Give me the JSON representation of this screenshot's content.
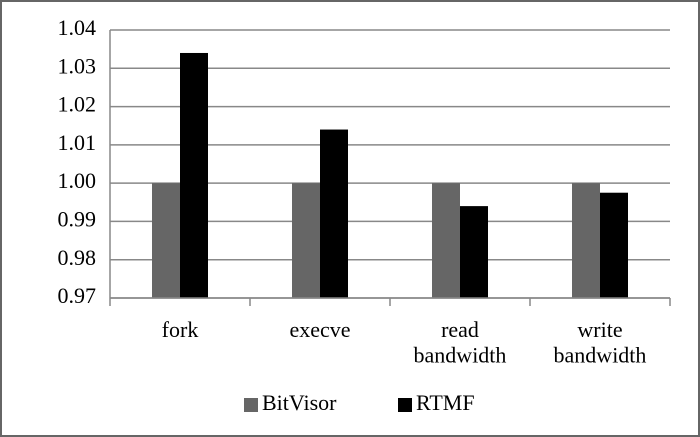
{
  "chart_data": {
    "type": "bar",
    "categories": [
      "fork",
      "execve",
      "read bandwidth",
      "write bandwidth"
    ],
    "series": [
      {
        "name": "BitVisor",
        "color": "#666666",
        "values": [
          1.0,
          1.0,
          1.0,
          1.0
        ]
      },
      {
        "name": "RTMF",
        "color": "#000000",
        "values": [
          1.034,
          1.014,
          0.994,
          0.9975
        ]
      }
    ],
    "ylim": [
      0.97,
      1.04
    ],
    "yticks": [
      0.97,
      0.98,
      0.99,
      {
        "value": 1,
        "label": "1.00"
      },
      1.01,
      1.02,
      1.03,
      1.04
    ],
    "grid": true,
    "legend": "bottom"
  }
}
